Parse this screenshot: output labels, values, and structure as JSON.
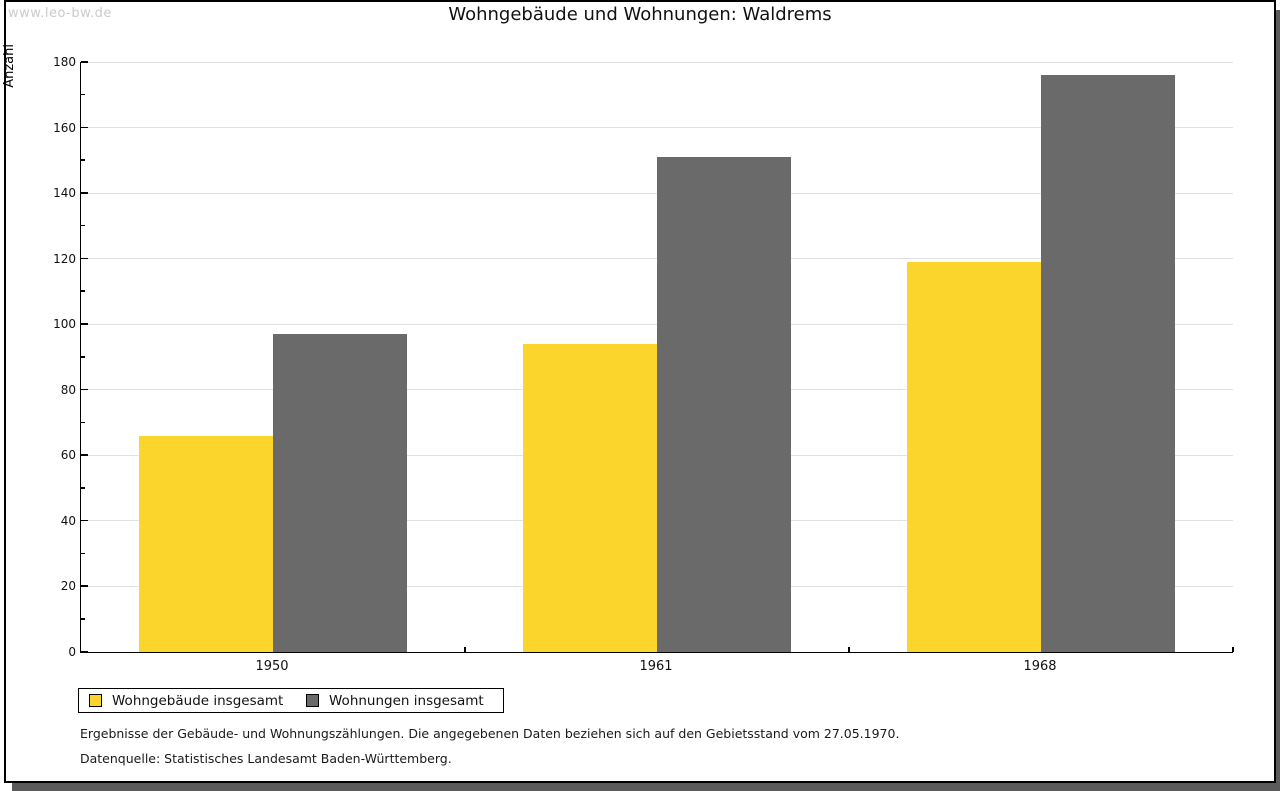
{
  "watermark": "www.leo-bw.de",
  "title": "Wohngebäude und Wohnungen: Waldrems",
  "chart_data": {
    "type": "bar",
    "title": "Wohngebäude und Wohnungen: Waldrems",
    "categories": [
      "1950",
      "1961",
      "1968"
    ],
    "series": [
      {
        "name": "Wohngebäude insgesamt",
        "color": "#fbd42c",
        "values": [
          66,
          94,
          119
        ]
      },
      {
        "name": "Wohnungen insgesamt",
        "color": "#6a6a6a",
        "values": [
          97,
          151,
          176
        ]
      }
    ],
    "xlabel": "",
    "ylabel": "Anzahl",
    "ylim": [
      0,
      180
    ],
    "ytick_step": 20,
    "yminor_step": 10,
    "grid": true,
    "legend_position": "bottom-left"
  },
  "legend": {
    "item1": "Wohngebäude insgesamt",
    "item2": "Wohnungen insgesamt"
  },
  "footer": {
    "line1": "Ergebnisse der Gebäude- und Wohnungszählungen. Die angegebenen Daten beziehen sich auf den Gebietsstand vom 27.05.1970.",
    "line2": "Datenquelle: Statistisches Landesamt Baden-Württemberg."
  },
  "colors": {
    "series1": "#fbd42c",
    "series2": "#6a6a6a",
    "gridline": "#e1e1e1",
    "axis": "#000000",
    "watermark": "#cbcbcb",
    "shadow": "#5b5b5b"
  }
}
